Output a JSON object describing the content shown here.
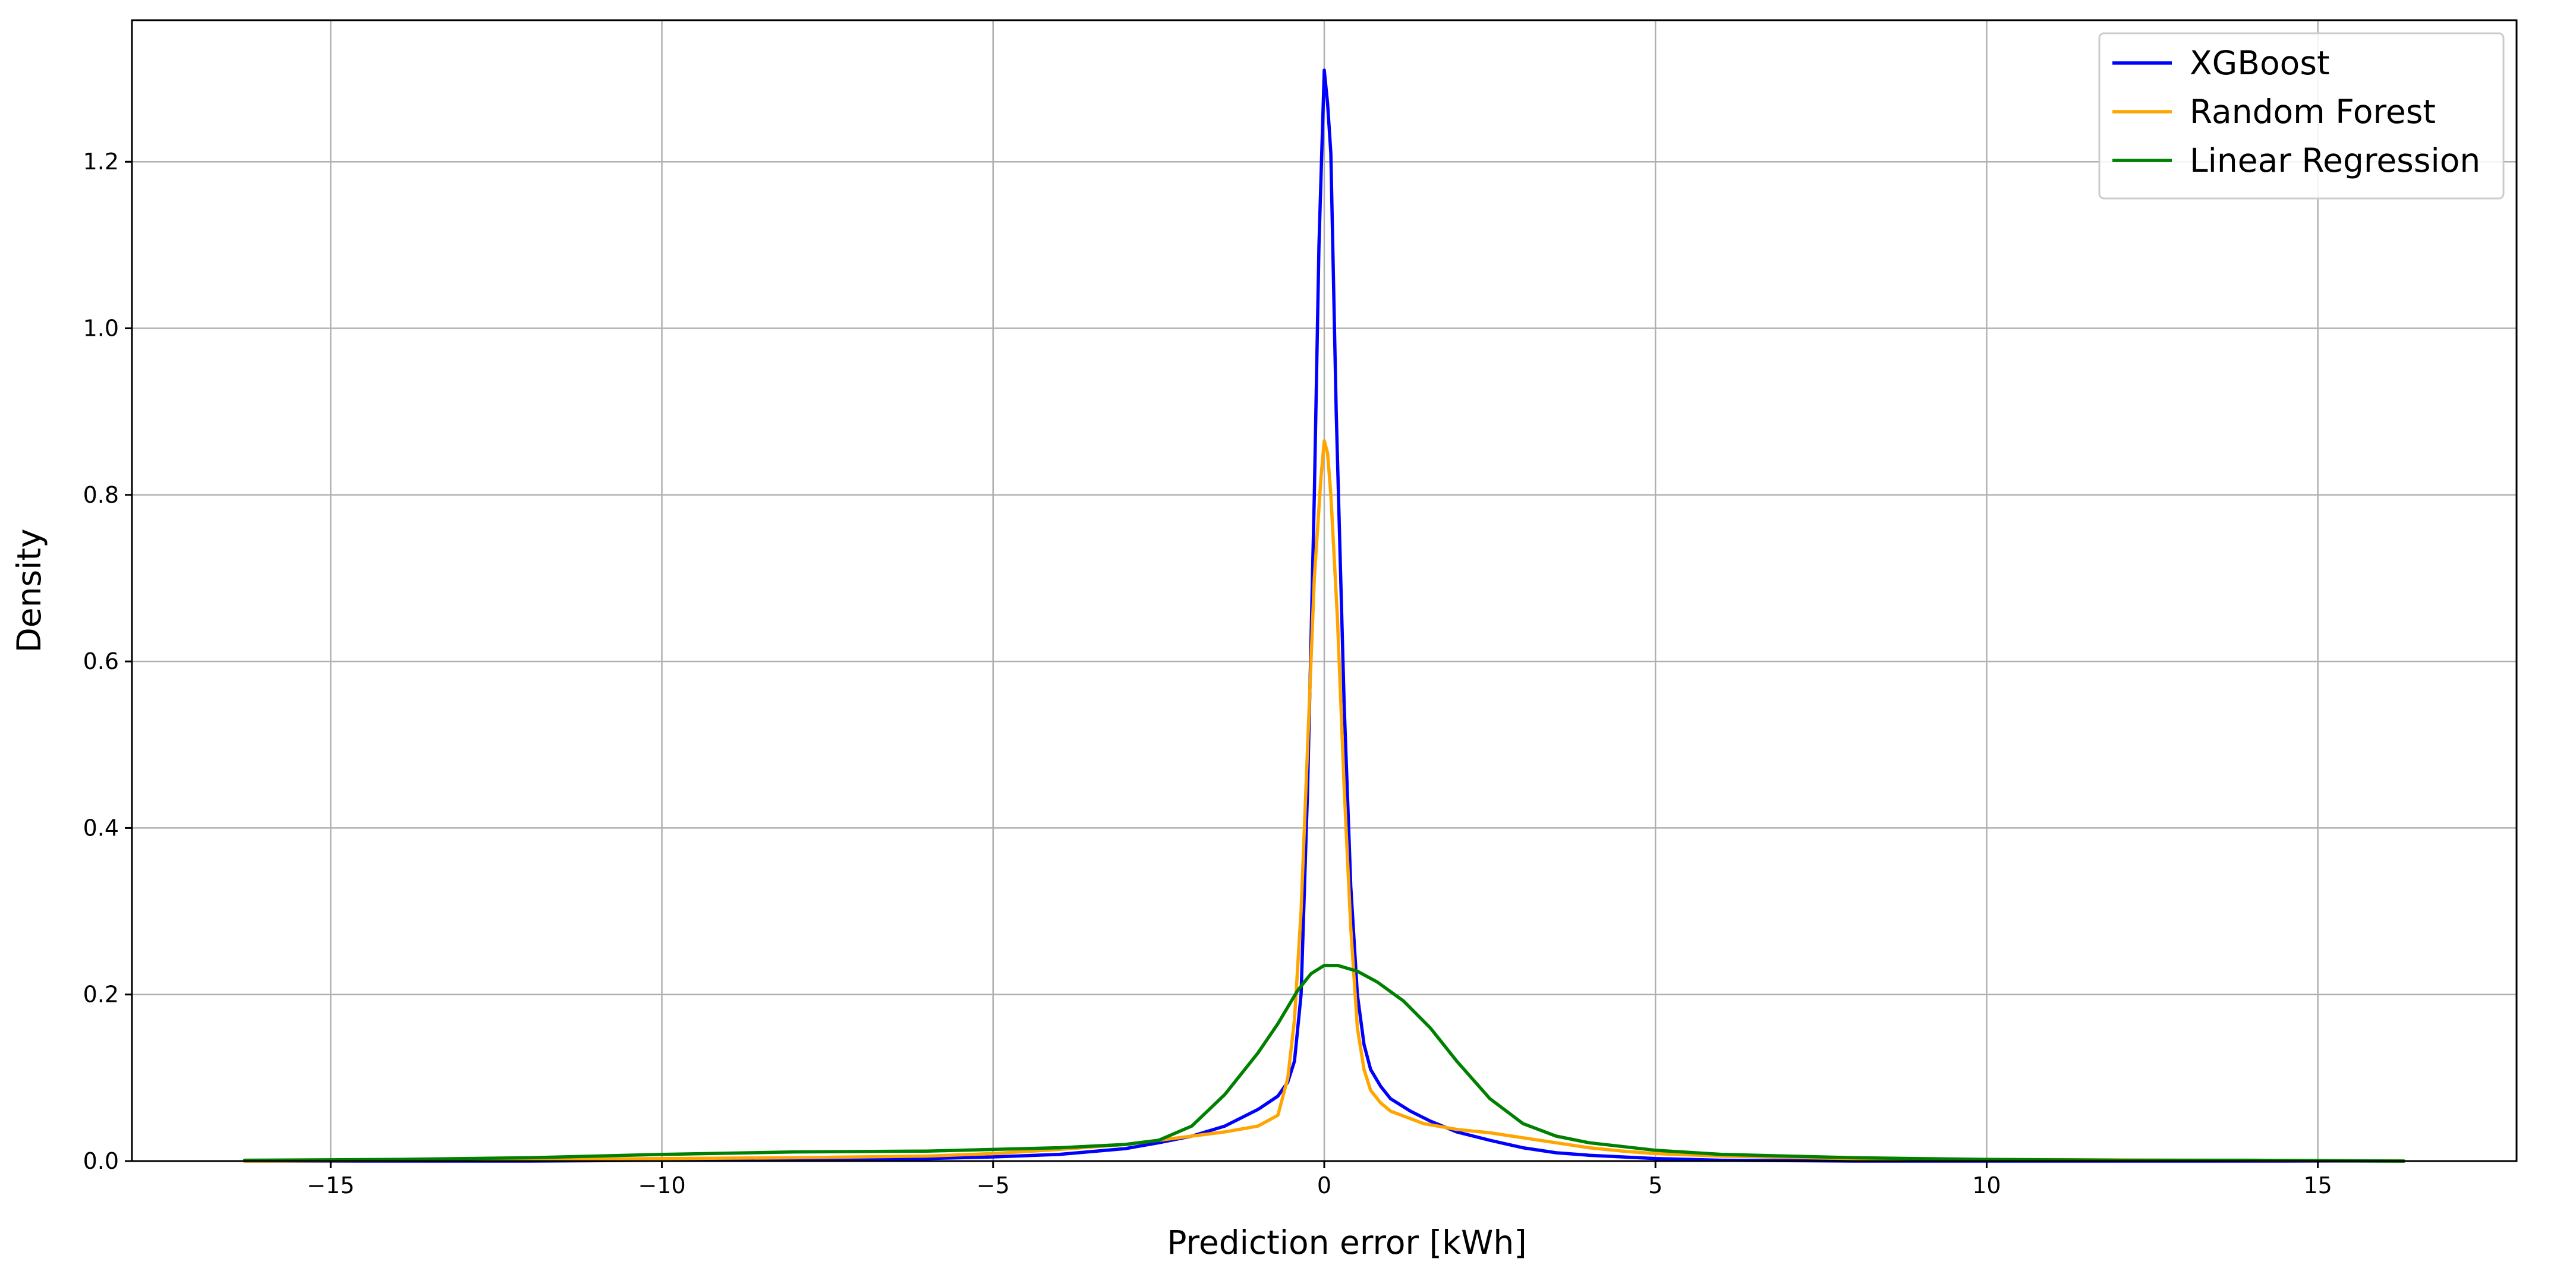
{
  "chart_data": {
    "type": "line",
    "title": "",
    "xlabel": "Prediction error [kWh]",
    "ylabel": "Density",
    "xlim": [
      -18,
      18
    ],
    "ylim": [
      0,
      1.37
    ],
    "grid": true,
    "legend_position": "top-right",
    "x_ticks": [
      -15,
      -10,
      -5,
      0,
      5,
      10,
      15
    ],
    "x_tick_labels": [
      "−15",
      "−10",
      "−5",
      "0",
      "5",
      "10",
      "15"
    ],
    "y_ticks": [
      0.0,
      0.2,
      0.4,
      0.6,
      0.8,
      1.0,
      1.2
    ],
    "y_tick_labels": [
      "0.0",
      "0.2",
      "0.4",
      "0.6",
      "0.8",
      "1.0",
      "1.2"
    ],
    "series": [
      {
        "name": "XGBoost",
        "color": "#0000ff",
        "points": [
          [
            -16.3,
            0.0
          ],
          [
            -12,
            0.0
          ],
          [
            -10,
            0.001
          ],
          [
            -8,
            0.002
          ],
          [
            -6,
            0.003
          ],
          [
            -5,
            0.005
          ],
          [
            -4,
            0.008
          ],
          [
            -3,
            0.015
          ],
          [
            -2.5,
            0.022
          ],
          [
            -2,
            0.03
          ],
          [
            -1.5,
            0.042
          ],
          [
            -1,
            0.062
          ],
          [
            -0.7,
            0.078
          ],
          [
            -0.55,
            0.095
          ],
          [
            -0.45,
            0.12
          ],
          [
            -0.35,
            0.2
          ],
          [
            -0.25,
            0.45
          ],
          [
            -0.15,
            0.8
          ],
          [
            -0.08,
            1.1
          ],
          [
            0.0,
            1.31
          ],
          [
            0.05,
            1.27
          ],
          [
            0.1,
            1.21
          ],
          [
            0.18,
            0.9
          ],
          [
            0.3,
            0.55
          ],
          [
            0.4,
            0.33
          ],
          [
            0.5,
            0.2
          ],
          [
            0.6,
            0.14
          ],
          [
            0.7,
            0.11
          ],
          [
            0.85,
            0.09
          ],
          [
            1,
            0.075
          ],
          [
            1.3,
            0.06
          ],
          [
            1.6,
            0.048
          ],
          [
            2,
            0.035
          ],
          [
            2.5,
            0.025
          ],
          [
            3,
            0.016
          ],
          [
            3.5,
            0.01
          ],
          [
            4,
            0.007
          ],
          [
            5,
            0.003
          ],
          [
            6,
            0.001
          ],
          [
            8,
            0.0
          ],
          [
            10,
            0.0
          ],
          [
            12,
            0.0
          ],
          [
            16.3,
            0.0
          ]
        ]
      },
      {
        "name": "Random Forest",
        "color": "#ffa500",
        "points": [
          [
            -16.3,
            0.0
          ],
          [
            -13,
            0.001
          ],
          [
            -10,
            0.003
          ],
          [
            -8,
            0.004
          ],
          [
            -6,
            0.006
          ],
          [
            -5,
            0.009
          ],
          [
            -4,
            0.014
          ],
          [
            -3,
            0.02
          ],
          [
            -2.5,
            0.025
          ],
          [
            -2,
            0.03
          ],
          [
            -1.5,
            0.035
          ],
          [
            -1,
            0.042
          ],
          [
            -0.7,
            0.055
          ],
          [
            -0.55,
            0.1
          ],
          [
            -0.45,
            0.17
          ],
          [
            -0.35,
            0.3
          ],
          [
            -0.25,
            0.5
          ],
          [
            -0.15,
            0.7
          ],
          [
            -0.05,
            0.82
          ],
          [
            0.0,
            0.865
          ],
          [
            0.05,
            0.85
          ],
          [
            0.1,
            0.8
          ],
          [
            0.2,
            0.65
          ],
          [
            0.3,
            0.45
          ],
          [
            0.4,
            0.28
          ],
          [
            0.5,
            0.16
          ],
          [
            0.6,
            0.11
          ],
          [
            0.7,
            0.085
          ],
          [
            0.85,
            0.07
          ],
          [
            1,
            0.06
          ],
          [
            1.5,
            0.045
          ],
          [
            2,
            0.038
          ],
          [
            2.5,
            0.034
          ],
          [
            3,
            0.028
          ],
          [
            3.5,
            0.022
          ],
          [
            4,
            0.016
          ],
          [
            4.5,
            0.012
          ],
          [
            5,
            0.009
          ],
          [
            6,
            0.006
          ],
          [
            8,
            0.003
          ],
          [
            10,
            0.002
          ],
          [
            13,
            0.001
          ],
          [
            16.3,
            0.0
          ]
        ]
      },
      {
        "name": "Linear Regression",
        "color": "#008000",
        "points": [
          [
            -16.3,
            0.001
          ],
          [
            -14,
            0.002
          ],
          [
            -12,
            0.004
          ],
          [
            -10,
            0.008
          ],
          [
            -8,
            0.011
          ],
          [
            -6,
            0.012
          ],
          [
            -5,
            0.014
          ],
          [
            -4,
            0.016
          ],
          [
            -3,
            0.02
          ],
          [
            -2.5,
            0.025
          ],
          [
            -2,
            0.042
          ],
          [
            -1.5,
            0.08
          ],
          [
            -1,
            0.13
          ],
          [
            -0.7,
            0.165
          ],
          [
            -0.4,
            0.205
          ],
          [
            -0.2,
            0.225
          ],
          [
            0.0,
            0.235
          ],
          [
            0.2,
            0.235
          ],
          [
            0.5,
            0.228
          ],
          [
            0.8,
            0.215
          ],
          [
            1.2,
            0.192
          ],
          [
            1.6,
            0.16
          ],
          [
            2,
            0.12
          ],
          [
            2.5,
            0.075
          ],
          [
            3,
            0.045
          ],
          [
            3.5,
            0.03
          ],
          [
            4,
            0.022
          ],
          [
            5,
            0.013
          ],
          [
            6,
            0.008
          ],
          [
            7,
            0.006
          ],
          [
            8,
            0.004
          ],
          [
            10,
            0.002
          ],
          [
            12,
            0.001
          ],
          [
            14,
            0.001
          ],
          [
            16.3,
            0.0
          ]
        ]
      }
    ]
  }
}
